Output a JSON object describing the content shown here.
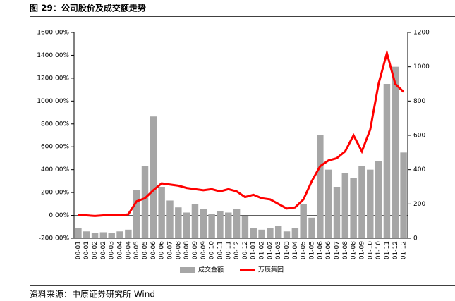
{
  "chart_data": {
    "type": "bar",
    "title": "图 29：公司股价及成交额走势",
    "source": "资料来源：中原证券研究所  Wind",
    "categories": [
      "00-01",
      "00-01",
      "00-02",
      "00-02",
      "00-03",
      "00-04",
      "00-04",
      "00-05",
      "00-05",
      "00-06",
      "00-06",
      "00-07",
      "00-08",
      "00-08",
      "00-09",
      "00-09",
      "00-10",
      "00-11",
      "00-11",
      "00-12",
      "00-12",
      "01-01",
      "01-02",
      "01-02",
      "01-03",
      "01-03",
      "01-04",
      "01-05",
      "01-05",
      "01-06",
      "01-06",
      "01-07",
      "01-08",
      "01-08",
      "01-09",
      "01-10",
      "01-10",
      "01-11",
      "01-12",
      "01-12"
    ],
    "series": [
      {
        "name": "成交金额",
        "type": "bar",
        "axis": "y2",
        "color": "#a6a6a6",
        "values": [
          60,
          40,
          30,
          35,
          30,
          40,
          50,
          280,
          420,
          710,
          300,
          220,
          180,
          150,
          200,
          170,
          140,
          160,
          150,
          170,
          130,
          60,
          50,
          60,
          70,
          40,
          60,
          200,
          120,
          600,
          400,
          300,
          380,
          350,
          420,
          400,
          450,
          900,
          1000,
          500
        ]
      },
      {
        "name": "万辰集团",
        "type": "line",
        "axis": "y",
        "color": "#ff0000",
        "values": [
          5,
          0,
          -5,
          0,
          0,
          0,
          10,
          123,
          150,
          220,
          280,
          270,
          260,
          240,
          230,
          220,
          230,
          210,
          230,
          210,
          160,
          180,
          150,
          140,
          100,
          60,
          70,
          140,
          300,
          430,
          480,
          500,
          560,
          700,
          560,
          750,
          1150,
          1420,
          1150,
          1080
        ]
      }
    ],
    "ylim": [
      -200,
      1600
    ],
    "yticks": [
      {
        "value": -200,
        "label": "-200.00%"
      },
      {
        "value": 0,
        "label": "0.00%"
      },
      {
        "value": 200,
        "label": "200.00%"
      },
      {
        "value": 400,
        "label": "400.00%"
      },
      {
        "value": 600,
        "label": "600.00%"
      },
      {
        "value": 800,
        "label": "800.00%"
      },
      {
        "value": 1000,
        "label": "1000.00%"
      },
      {
        "value": 1200,
        "label": "1200.00%"
      },
      {
        "value": 1400,
        "label": "1400.00%"
      },
      {
        "value": 1600,
        "label": "1600.00%"
      }
    ],
    "y2lim": [
      0,
      1200
    ],
    "y2ticks": [
      0,
      200,
      400,
      600,
      800,
      1000,
      1200
    ],
    "legend": "bottom"
  }
}
